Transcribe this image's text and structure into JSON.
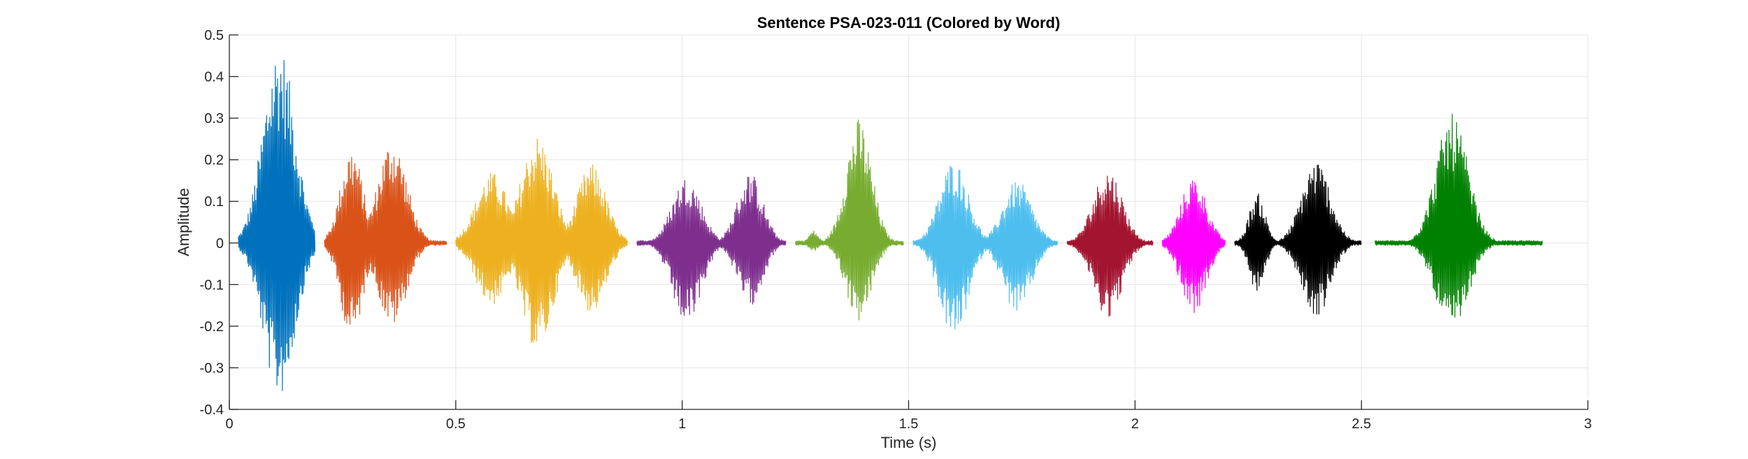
{
  "chart_data": {
    "type": "line",
    "title": "Sentence PSA-023-011 (Colored by Word)",
    "xlabel": "Time (s)",
    "ylabel": "Amplitude",
    "xlim": [
      0,
      3
    ],
    "ylim": [
      -0.4,
      0.5
    ],
    "xticks": [
      0,
      0.5,
      1,
      1.5,
      2,
      2.5,
      3
    ],
    "xtick_labels": [
      "0",
      "0.5",
      "1",
      "1.5",
      "2",
      "2.5",
      "3"
    ],
    "yticks": [
      -0.4,
      -0.3,
      -0.2,
      -0.1,
      0,
      0.1,
      0.2,
      0.3,
      0.4,
      0.5
    ],
    "ytick_labels": [
      "-0.4",
      "-0.3",
      "-0.2",
      "-0.1",
      "0",
      "0.1",
      "0.2",
      "0.3",
      "0.4",
      "0.5"
    ],
    "grid": true,
    "legend": "none",
    "series": [
      {
        "color": "#0072BD",
        "start": 0.02,
        "end": 0.19,
        "bursts": [
          {
            "center": 0.11,
            "width": 0.05,
            "pos": 0.48,
            "neg": 0.37
          }
        ]
      },
      {
        "color": "#D95319",
        "start": 0.21,
        "end": 0.48,
        "bursts": [
          {
            "center": 0.27,
            "width": 0.035,
            "pos": 0.23,
            "neg": 0.23
          },
          {
            "center": 0.36,
            "width": 0.045,
            "pos": 0.25,
            "neg": 0.2
          }
        ]
      },
      {
        "color": "#EDB120",
        "start": 0.5,
        "end": 0.88,
        "bursts": [
          {
            "center": 0.58,
            "width": 0.05,
            "pos": 0.17,
            "neg": 0.15
          },
          {
            "center": 0.68,
            "width": 0.05,
            "pos": 0.26,
            "neg": 0.26
          },
          {
            "center": 0.8,
            "width": 0.045,
            "pos": 0.19,
            "neg": 0.17
          }
        ]
      },
      {
        "color": "#7E2F8E",
        "start": 0.9,
        "end": 1.23,
        "bursts": [
          {
            "center": 1.01,
            "width": 0.045,
            "pos": 0.16,
            "neg": 0.2
          },
          {
            "center": 1.15,
            "width": 0.04,
            "pos": 0.17,
            "neg": 0.15
          }
        ]
      },
      {
        "color": "#77AC30",
        "start": 1.25,
        "end": 1.49,
        "bursts": [
          {
            "center": 1.29,
            "width": 0.015,
            "pos": 0.03,
            "neg": 0.02
          },
          {
            "center": 1.39,
            "width": 0.04,
            "pos": 0.3,
            "neg": 0.19
          }
        ]
      },
      {
        "color": "#4DBEEE",
        "start": 1.51,
        "end": 1.83,
        "bursts": [
          {
            "center": 1.6,
            "width": 0.045,
            "pos": 0.2,
            "neg": 0.23
          },
          {
            "center": 1.74,
            "width": 0.045,
            "pos": 0.15,
            "neg": 0.17
          }
        ]
      },
      {
        "color": "#A2142F",
        "start": 1.85,
        "end": 2.04,
        "bursts": [
          {
            "center": 1.94,
            "width": 0.045,
            "pos": 0.18,
            "neg": 0.18
          }
        ]
      },
      {
        "color": "#FF00FF",
        "start": 2.06,
        "end": 2.2,
        "bursts": [
          {
            "center": 2.13,
            "width": 0.04,
            "pos": 0.16,
            "neg": 0.17
          }
        ]
      },
      {
        "color": "#000000",
        "start": 2.22,
        "end": 2.5,
        "bursts": [
          {
            "center": 2.27,
            "width": 0.025,
            "pos": 0.12,
            "neg": 0.12
          },
          {
            "center": 2.4,
            "width": 0.045,
            "pos": 0.2,
            "neg": 0.18
          }
        ]
      },
      {
        "color": "#008000",
        "start": 2.53,
        "end": 2.9,
        "bursts": [
          {
            "center": 2.7,
            "width": 0.05,
            "pos": 0.31,
            "neg": 0.22
          }
        ]
      }
    ]
  }
}
